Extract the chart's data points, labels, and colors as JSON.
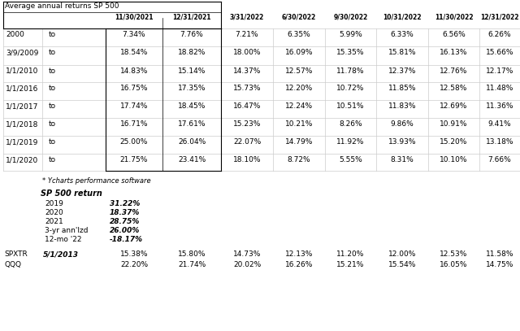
{
  "title": "Average annual returns SP 500",
  "col_headers": [
    "",
    "",
    "11/30/2021",
    "12/31/2021",
    "3/31/2022",
    "6/30/2022",
    "9/30/2022",
    "10/31/2022",
    "11/30/2022",
    "12/31/2022"
  ],
  "main_rows": [
    [
      "2000",
      "to",
      "7.34%",
      "7.76%",
      "7.21%",
      "6.35%",
      "5.99%",
      "6.33%",
      "6.56%",
      "6.26%"
    ],
    [
      "3/9/2009",
      "to",
      "18.54%",
      "18.82%",
      "18.00%",
      "16.09%",
      "15.35%",
      "15.81%",
      "16.13%",
      "15.66%"
    ],
    [
      "1/1/2010",
      "to",
      "14.83%",
      "15.14%",
      "14.37%",
      "12.57%",
      "11.78%",
      "12.37%",
      "12.76%",
      "12.17%"
    ],
    [
      "1/1/2016",
      "to",
      "16.75%",
      "17.35%",
      "15.73%",
      "12.20%",
      "10.72%",
      "11.85%",
      "12.58%",
      "11.48%"
    ],
    [
      "1/1/2017",
      "to",
      "17.74%",
      "18.45%",
      "16.47%",
      "12.24%",
      "10.51%",
      "11.83%",
      "12.69%",
      "11.36%"
    ],
    [
      "1/1/2018",
      "to",
      "16.71%",
      "17.61%",
      "15.23%",
      "10.21%",
      "8.26%",
      "9.86%",
      "10.91%",
      "9.41%"
    ],
    [
      "1/1/2019",
      "to",
      "25.00%",
      "26.04%",
      "22.07%",
      "14.79%",
      "11.92%",
      "13.93%",
      "15.20%",
      "13.18%"
    ],
    [
      "1/1/2020",
      "to",
      "21.75%",
      "23.41%",
      "18.10%",
      "8.72%",
      "5.55%",
      "8.31%",
      "10.10%",
      "7.66%"
    ]
  ],
  "footnote": "* Ycharts performance software",
  "sp500_section_label": "SP 500 return",
  "sp500_annual": [
    [
      "2019",
      "31.22%"
    ],
    [
      "2020",
      "18.37%"
    ],
    [
      "2021",
      "28.75%"
    ],
    [
      "3-yr ann'lzd",
      "26.00%"
    ],
    [
      "12-mo '22",
      "-18.17%"
    ]
  ],
  "bottom_rows": [
    [
      "SPXTR",
      "5/1/2013",
      "15.38%",
      "15.80%",
      "14.73%",
      "12.13%",
      "11.20%",
      "12.00%",
      "12.53%",
      "11.58%"
    ],
    [
      "QQQ",
      "",
      "22.20%",
      "21.74%",
      "20.02%",
      "16.26%",
      "15.21%",
      "15.54%",
      "16.05%",
      "14.75%"
    ]
  ],
  "bg_color": "#ffffff",
  "grid_color": "#cccccc",
  "text_color": "#000000"
}
